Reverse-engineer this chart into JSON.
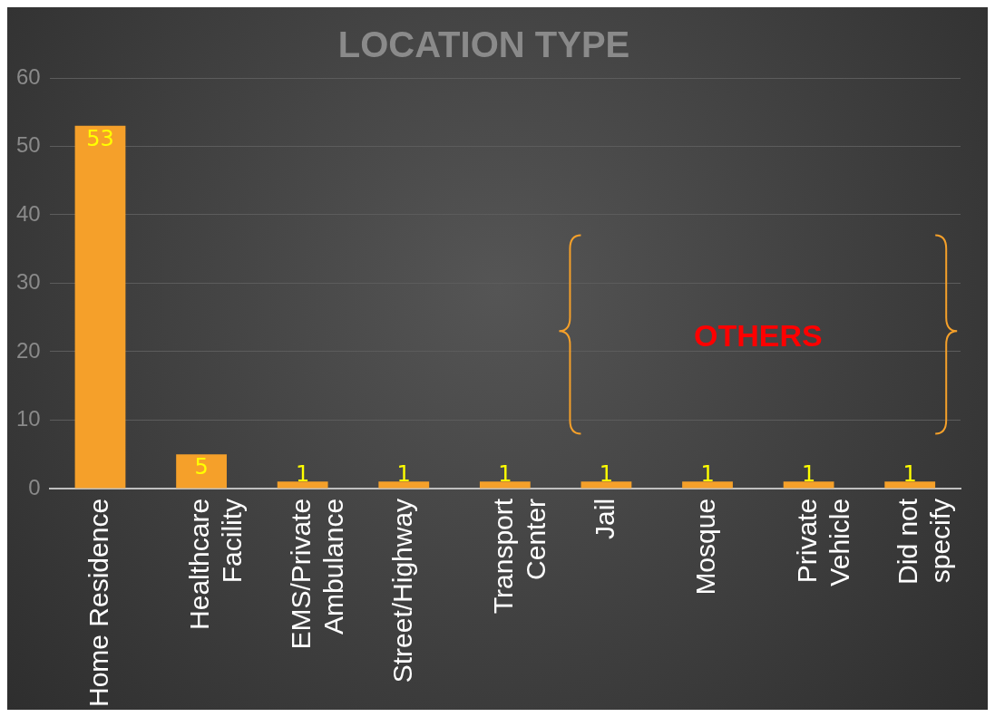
{
  "chart_data": {
    "type": "bar",
    "title": "LOCATION TYPE",
    "categories": [
      "Home Residence",
      "Healthcare Facility",
      "EMS/Private Ambulance",
      "Street/Highway",
      "Transport Center",
      "Jail",
      "Mosque",
      "Private Vehicle",
      "Did not specify"
    ],
    "values": [
      53,
      5,
      1,
      1,
      1,
      1,
      1,
      1,
      1
    ],
    "color": "#f5a02a",
    "ylim": [
      0,
      60
    ],
    "yticks": [
      0,
      10,
      20,
      30,
      40,
      50,
      60
    ],
    "grid": "y",
    "data_labels": true,
    "annotations": [
      "OTHERS"
    ]
  }
}
